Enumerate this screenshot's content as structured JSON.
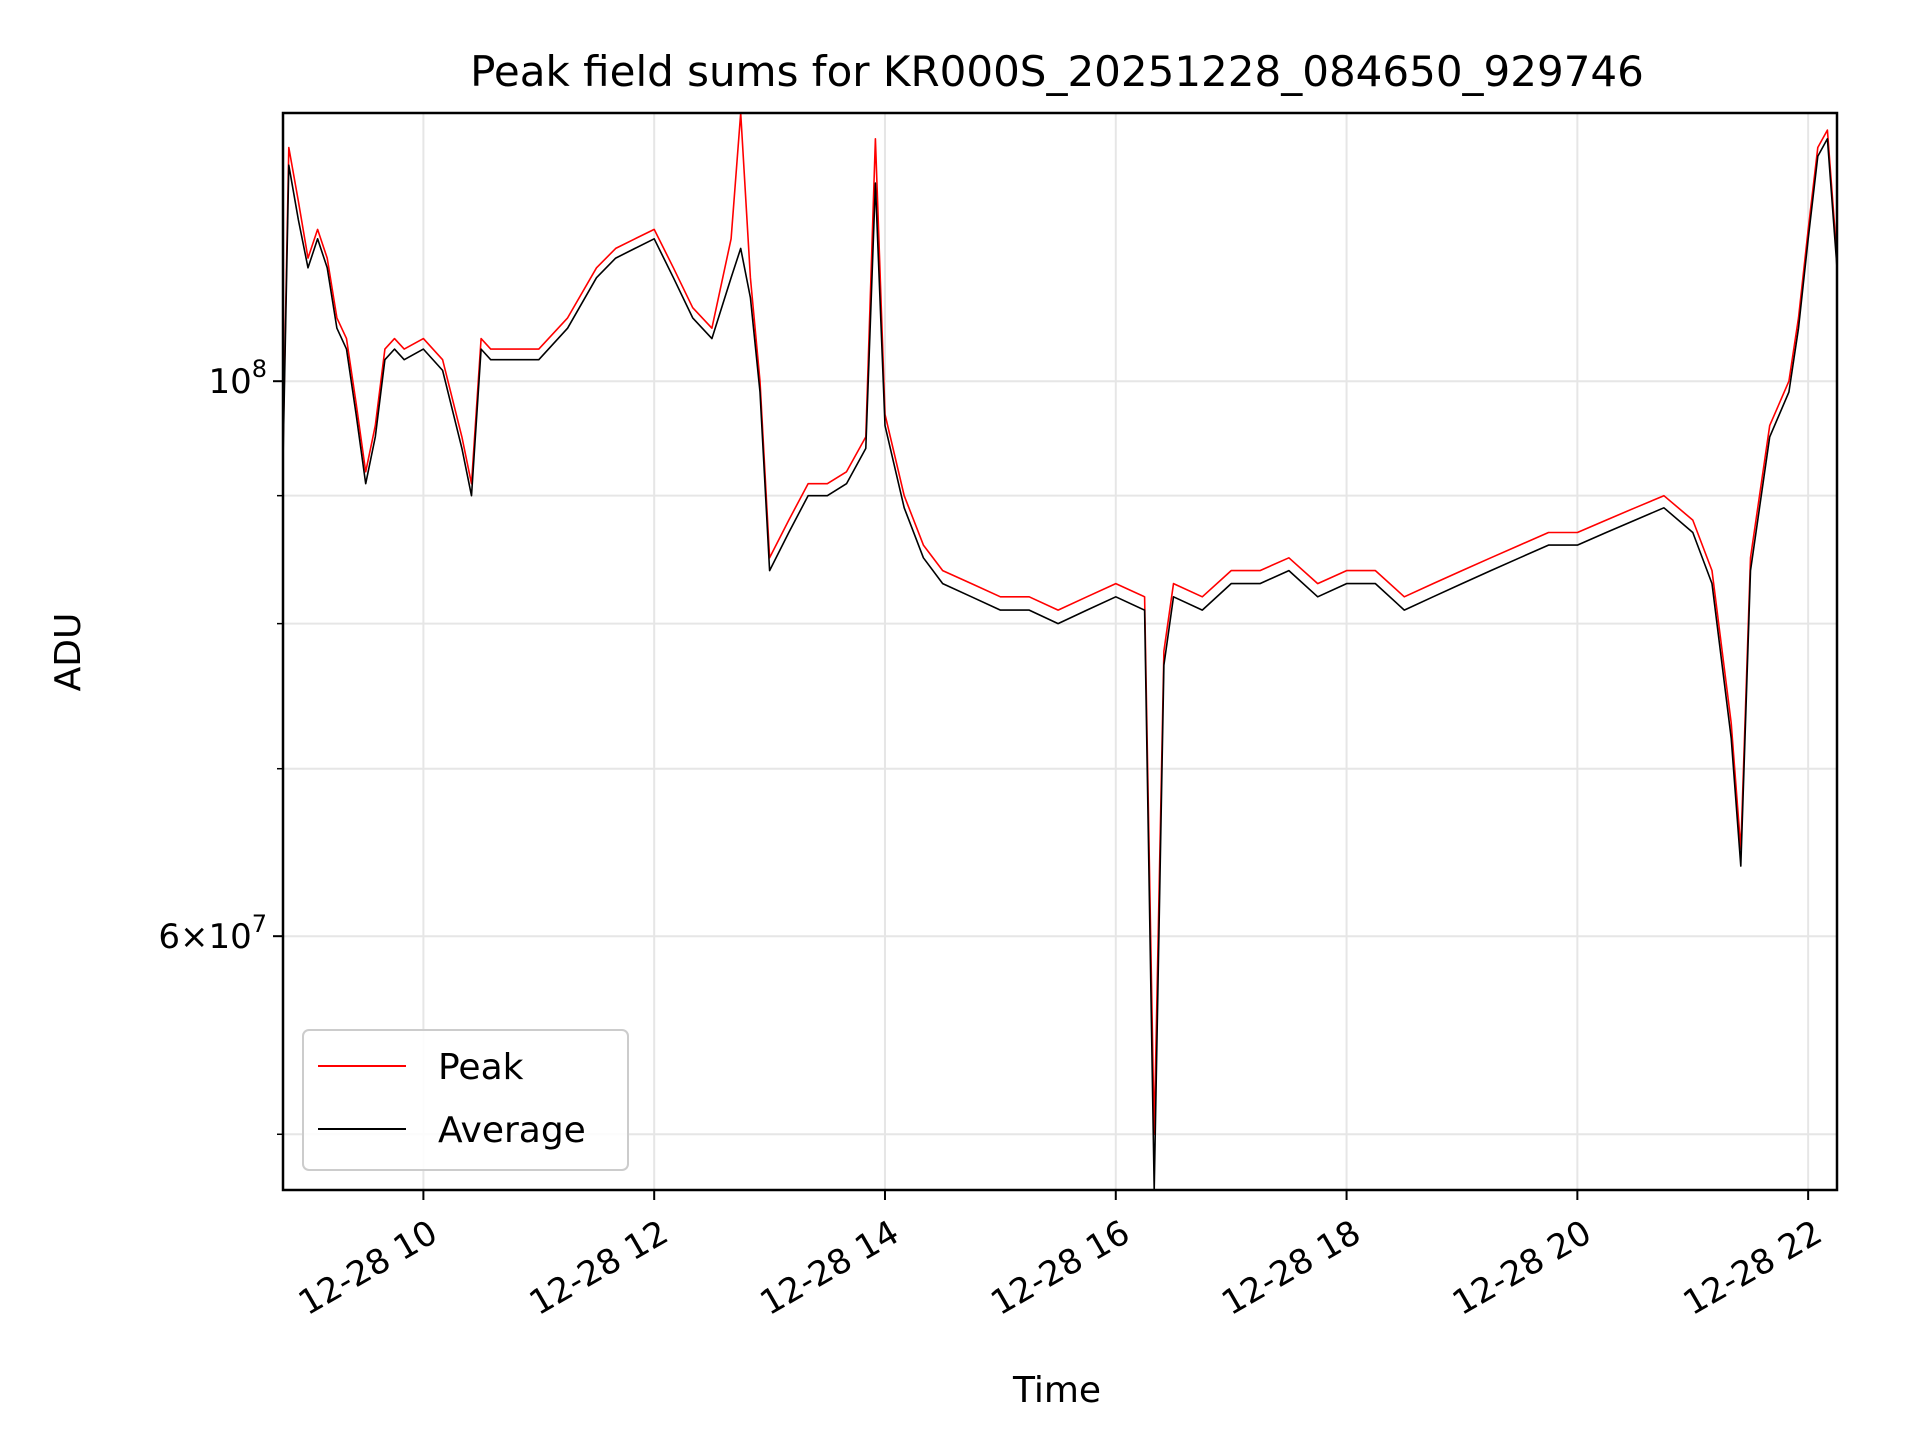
{
  "chart_data": {
    "type": "line",
    "title": "Peak field sums for KR000S_20251228_084650_929746",
    "xlabel": "Time",
    "ylabel": "ADU",
    "yscale": "log",
    "grid": true,
    "legend_placement": "lower-left",
    "xlim": [
      "12-28 08:47",
      "12-28 22:15"
    ],
    "ylim": [
      47500000,
      128000000
    ],
    "x_ticks": [
      "12-28 10",
      "12-28 12",
      "12-28 14",
      "12-28 16",
      "12-28 18",
      "12-28 20",
      "12-28 22"
    ],
    "x_tick_hours": [
      10,
      12,
      14,
      16,
      18,
      20,
      22
    ],
    "y_ticks": [
      {
        "value": 100000000,
        "mantissa": "",
        "base": "10",
        "exp": "8"
      },
      {
        "value": 60000000,
        "mantissa": "6",
        "base": "10",
        "exp": "7"
      }
    ],
    "y_minor_ticks": [
      50000000,
      70000000,
      80000000,
      90000000
    ],
    "series": [
      {
        "name": "Peak",
        "color": "#ff0000",
        "x": [
          "08:47",
          "08:50",
          "08:55",
          "09:00",
          "09:05",
          "09:10",
          "09:15",
          "09:20",
          "09:25",
          "09:30",
          "09:35",
          "09:40",
          "09:45",
          "09:50",
          "10:00",
          "10:10",
          "10:20",
          "10:25",
          "10:30",
          "10:35",
          "10:45",
          "11:00",
          "11:15",
          "11:30",
          "11:40",
          "11:50",
          "12:00",
          "12:10",
          "12:20",
          "12:30",
          "12:40",
          "12:45",
          "12:50",
          "12:55",
          "13:00",
          "13:10",
          "13:20",
          "13:30",
          "13:40",
          "13:50",
          "13:55",
          "14:00",
          "14:10",
          "14:20",
          "14:30",
          "14:45",
          "15:00",
          "15:15",
          "15:30",
          "15:45",
          "16:00",
          "16:15",
          "16:20",
          "16:25",
          "16:30",
          "16:45",
          "17:00",
          "17:15",
          "17:30",
          "17:45",
          "18:00",
          "18:15",
          "18:30",
          "18:45",
          "19:00",
          "19:15",
          "19:30",
          "19:45",
          "20:00",
          "20:15",
          "20:30",
          "20:45",
          "21:00",
          "21:10",
          "21:20",
          "21:25",
          "21:30",
          "21:40",
          "21:50",
          "21:55",
          "22:00",
          "22:05",
          "22:10",
          "22:15"
        ],
        "values": [
          94000000,
          124000000,
          118000000,
          112000000,
          115000000,
          112000000,
          106000000,
          104000000,
          98000000,
          92000000,
          96000000,
          103000000,
          104000000,
          103000000,
          104000000,
          102000000,
          95000000,
          91000000,
          104000000,
          103000000,
          103000000,
          103000000,
          106000000,
          111000000,
          113000000,
          114000000,
          115000000,
          111000000,
          107000000,
          105000000,
          114000000,
          128000000,
          110000000,
          100000000,
          85000000,
          88000000,
          91000000,
          91000000,
          92000000,
          95000000,
          125000000,
          97000000,
          90000000,
          86000000,
          84000000,
          83000000,
          82000000,
          82000000,
          81000000,
          82000000,
          83000000,
          82000000,
          50000000,
          78000000,
          83000000,
          82000000,
          84000000,
          84000000,
          85000000,
          83000000,
          84000000,
          84000000,
          82000000,
          83000000,
          84000000,
          85000000,
          86000000,
          87000000,
          87000000,
          88000000,
          89000000,
          90000000,
          88000000,
          84000000,
          73000000,
          65000000,
          85000000,
          96000000,
          100000000,
          106000000,
          115000000,
          124000000,
          126000000,
          112000000
        ]
      },
      {
        "name": "Average",
        "color": "#000000",
        "x": [
          "08:47",
          "08:50",
          "08:55",
          "09:00",
          "09:05",
          "09:10",
          "09:15",
          "09:20",
          "09:25",
          "09:30",
          "09:35",
          "09:40",
          "09:45",
          "09:50",
          "10:00",
          "10:10",
          "10:20",
          "10:25",
          "10:30",
          "10:35",
          "10:45",
          "11:00",
          "11:15",
          "11:30",
          "11:40",
          "11:50",
          "12:00",
          "12:10",
          "12:20",
          "12:30",
          "12:40",
          "12:45",
          "12:50",
          "12:55",
          "13:00",
          "13:10",
          "13:20",
          "13:30",
          "13:40",
          "13:50",
          "13:55",
          "14:00",
          "14:10",
          "14:20",
          "14:30",
          "14:45",
          "15:00",
          "15:15",
          "15:30",
          "15:45",
          "16:00",
          "16:15",
          "16:20",
          "16:25",
          "16:30",
          "16:45",
          "17:00",
          "17:15",
          "17:30",
          "17:45",
          "18:00",
          "18:15",
          "18:30",
          "18:45",
          "19:00",
          "19:15",
          "19:30",
          "19:45",
          "20:00",
          "20:15",
          "20:30",
          "20:45",
          "21:00",
          "21:10",
          "21:20",
          "21:25",
          "21:30",
          "21:40",
          "21:50",
          "21:55",
          "22:00",
          "22:05",
          "22:10",
          "22:15"
        ],
        "values": [
          93000000,
          122000000,
          116000000,
          111000000,
          114000000,
          111000000,
          105000000,
          103000000,
          97000000,
          91000000,
          95000000,
          102000000,
          103000000,
          102000000,
          103000000,
          101000000,
          94000000,
          90000000,
          103000000,
          102000000,
          102000000,
          102000000,
          105000000,
          110000000,
          112000000,
          113000000,
          114000000,
          110000000,
          106000000,
          104000000,
          110000000,
          113000000,
          108000000,
          99000000,
          84000000,
          87000000,
          90000000,
          90000000,
          91000000,
          94000000,
          120000000,
          96000000,
          89000000,
          85000000,
          83000000,
          82000000,
          81000000,
          81000000,
          80000000,
          81000000,
          82000000,
          81000000,
          47500000,
          77000000,
          82000000,
          81000000,
          83000000,
          83000000,
          84000000,
          82000000,
          83000000,
          83000000,
          81000000,
          82000000,
          83000000,
          84000000,
          85000000,
          86000000,
          86000000,
          87000000,
          88000000,
          89000000,
          87000000,
          83000000,
          72000000,
          64000000,
          84000000,
          95000000,
          99000000,
          105000000,
          114000000,
          123000000,
          125000000,
          111000000
        ]
      }
    ]
  }
}
